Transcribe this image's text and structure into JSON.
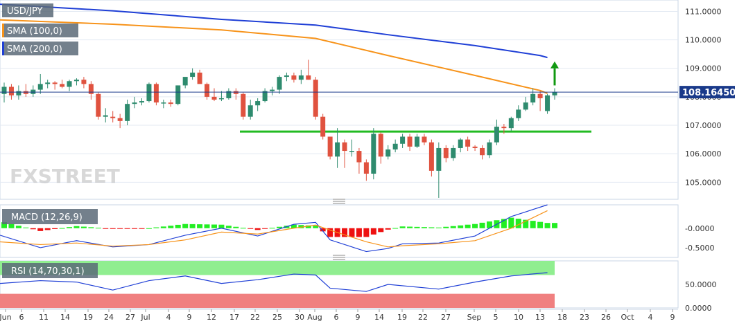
{
  "chart_data": [
    {
      "type": "candlestick",
      "symbol": "USD/JPY",
      "overlays": [
        {
          "name": "SMA (100,0)",
          "color": "#f7931a",
          "points": [
            [
              "Jun 3",
              110.7
            ],
            [
              "Jun 24",
              110.55
            ],
            [
              "Jul 15",
              110.35
            ],
            [
              "Aug 1",
              110.05
            ],
            [
              "Aug 15",
              109.45
            ],
            [
              "Sep 1",
              108.75
            ],
            [
              "Sep 13",
              108.22
            ],
            [
              "Sep 16",
              108.12
            ]
          ]
        },
        {
          "name": "SMA (200,0)",
          "color": "#1f3fd6",
          "points": [
            [
              "Jun 3",
              111.25
            ],
            [
              "Jun 24",
              111.02
            ],
            [
              "Jul 15",
              110.72
            ],
            [
              "Aug 1",
              110.52
            ],
            [
              "Aug 15",
              110.18
            ],
            [
              "Sep 1",
              109.8
            ],
            [
              "Sep 13",
              109.45
            ],
            [
              "Sep 16",
              109.38
            ]
          ]
        }
      ],
      "last_price": "108.16450",
      "last_price_value": 108.1645,
      "support_level": 106.78,
      "ylim": [
        104.4,
        111.4
      ],
      "yticks": [
        "105.0000",
        "106.0000",
        "107.0000",
        "108.0000",
        "109.0000",
        "110.0000",
        "111.0000"
      ],
      "colors": {
        "up": "#2e8b6e",
        "down": "#e0523f",
        "support": "#22bb22",
        "arrow": "#119911",
        "price_line": "#1a3a8a"
      },
      "candles": [
        {
          "d": "Jun 3",
          "o": 108.1,
          "h": 108.5,
          "l": 107.8,
          "c": 108.35
        },
        {
          "d": "Jun 4",
          "o": 108.35,
          "h": 108.45,
          "l": 107.9,
          "c": 108.05
        },
        {
          "d": "Jun 5",
          "o": 108.05,
          "h": 108.4,
          "l": 107.9,
          "c": 108.2
        },
        {
          "d": "Jun 6",
          "o": 108.2,
          "h": 108.45,
          "l": 108.0,
          "c": 108.1
        },
        {
          "d": "Jun 7",
          "o": 108.1,
          "h": 108.4,
          "l": 108.0,
          "c": 108.25
        },
        {
          "d": "Jun 10",
          "o": 108.25,
          "h": 108.8,
          "l": 108.1,
          "c": 108.45
        },
        {
          "d": "Jun 11",
          "o": 108.45,
          "h": 108.6,
          "l": 108.3,
          "c": 108.5
        },
        {
          "d": "Jun 12",
          "o": 108.5,
          "h": 108.55,
          "l": 108.25,
          "c": 108.45
        },
        {
          "d": "Jun 13",
          "o": 108.45,
          "h": 108.6,
          "l": 108.3,
          "c": 108.35
        },
        {
          "d": "Jun 14",
          "o": 108.35,
          "h": 108.6,
          "l": 108.2,
          "c": 108.55
        },
        {
          "d": "Jun 17",
          "o": 108.55,
          "h": 108.65,
          "l": 108.4,
          "c": 108.6
        },
        {
          "d": "Jun 18",
          "o": 108.6,
          "h": 108.7,
          "l": 108.3,
          "c": 108.45
        },
        {
          "d": "Jun 19",
          "o": 108.45,
          "h": 108.55,
          "l": 107.9,
          "c": 108.1
        },
        {
          "d": "Jun 20",
          "o": 108.1,
          "h": 108.15,
          "l": 107.2,
          "c": 107.3
        },
        {
          "d": "Jun 21",
          "o": 107.3,
          "h": 107.6,
          "l": 107.1,
          "c": 107.35
        },
        {
          "d": "Jun 24",
          "o": 107.3,
          "h": 107.5,
          "l": 107.1,
          "c": 107.25
        },
        {
          "d": "Jun 25",
          "o": 107.25,
          "h": 107.4,
          "l": 106.9,
          "c": 107.15
        },
        {
          "d": "Jun 26",
          "o": 107.15,
          "h": 107.9,
          "l": 107.0,
          "c": 107.75
        },
        {
          "d": "Jun 27",
          "o": 107.75,
          "h": 108.0,
          "l": 107.6,
          "c": 107.8
        },
        {
          "d": "Jun 28",
          "o": 107.8,
          "h": 107.95,
          "l": 107.7,
          "c": 107.85
        },
        {
          "d": "Jul 1",
          "o": 107.85,
          "h": 108.5,
          "l": 107.8,
          "c": 108.45
        },
        {
          "d": "Jul 2",
          "o": 108.45,
          "h": 108.5,
          "l": 107.7,
          "c": 107.8
        },
        {
          "d": "Jul 3",
          "o": 107.8,
          "h": 107.9,
          "l": 107.6,
          "c": 107.8
        },
        {
          "d": "Jul 4",
          "o": 107.8,
          "h": 107.9,
          "l": 107.65,
          "c": 107.75
        },
        {
          "d": "Jul 5",
          "o": 107.75,
          "h": 108.4,
          "l": 107.7,
          "c": 108.4
        },
        {
          "d": "Jul 8",
          "o": 108.4,
          "h": 108.65,
          "l": 108.3,
          "c": 108.7
        },
        {
          "d": "Jul 9",
          "o": 108.7,
          "h": 109.0,
          "l": 108.6,
          "c": 108.85
        },
        {
          "d": "Jul 10",
          "o": 108.85,
          "h": 108.95,
          "l": 108.5,
          "c": 108.45
        },
        {
          "d": "Jul 11",
          "o": 108.45,
          "h": 108.5,
          "l": 107.9,
          "c": 108.0
        },
        {
          "d": "Jul 12",
          "o": 108.0,
          "h": 108.3,
          "l": 107.85,
          "c": 107.9
        },
        {
          "d": "Jul 15",
          "o": 107.95,
          "h": 108.2,
          "l": 107.85,
          "c": 107.95
        },
        {
          "d": "Jul 16",
          "o": 107.95,
          "h": 108.3,
          "l": 107.9,
          "c": 108.2
        },
        {
          "d": "Jul 17",
          "o": 108.2,
          "h": 108.3,
          "l": 107.9,
          "c": 108.1
        },
        {
          "d": "Jul 18",
          "o": 108.1,
          "h": 108.15,
          "l": 107.2,
          "c": 107.3
        },
        {
          "d": "Jul 19",
          "o": 107.3,
          "h": 107.9,
          "l": 107.2,
          "c": 107.7
        },
        {
          "d": "Jul 22",
          "o": 107.7,
          "h": 107.95,
          "l": 107.5,
          "c": 107.85
        },
        {
          "d": "Jul 23",
          "o": 107.85,
          "h": 108.3,
          "l": 107.8,
          "c": 108.2
        },
        {
          "d": "Jul 24",
          "o": 108.2,
          "h": 108.35,
          "l": 108.05,
          "c": 108.25
        },
        {
          "d": "Jul 25",
          "o": 108.25,
          "h": 108.75,
          "l": 108.1,
          "c": 108.7
        },
        {
          "d": "Jul 26",
          "o": 108.7,
          "h": 108.85,
          "l": 108.55,
          "c": 108.75
        },
        {
          "d": "Jul 29",
          "o": 108.75,
          "h": 108.85,
          "l": 108.5,
          "c": 108.6
        },
        {
          "d": "Jul 30",
          "o": 108.6,
          "h": 108.95,
          "l": 108.45,
          "c": 108.75
        },
        {
          "d": "Jul 31",
          "o": 108.75,
          "h": 109.3,
          "l": 108.6,
          "c": 108.6
        },
        {
          "d": "Aug 1",
          "o": 108.6,
          "h": 108.7,
          "l": 107.2,
          "c": 107.3
        },
        {
          "d": "Aug 2",
          "o": 107.3,
          "h": 107.4,
          "l": 106.5,
          "c": 106.6
        },
        {
          "d": "Aug 5",
          "o": 106.6,
          "h": 106.6,
          "l": 105.8,
          "c": 105.9
        },
        {
          "d": "Aug 6",
          "o": 105.9,
          "h": 106.9,
          "l": 105.5,
          "c": 106.4
        },
        {
          "d": "Aug 7",
          "o": 106.4,
          "h": 106.5,
          "l": 105.5,
          "c": 106.1
        },
        {
          "d": "Aug 8",
          "o": 106.1,
          "h": 106.5,
          "l": 105.9,
          "c": 106.1
        },
        {
          "d": "Aug 9",
          "o": 106.1,
          "h": 106.2,
          "l": 105.3,
          "c": 105.7
        },
        {
          "d": "Aug 12",
          "o": 105.7,
          "h": 105.8,
          "l": 105.05,
          "c": 105.3
        },
        {
          "d": "Aug 13",
          "o": 105.3,
          "h": 106.9,
          "l": 105.1,
          "c": 106.7
        },
        {
          "d": "Aug 14",
          "o": 106.7,
          "h": 106.75,
          "l": 105.65,
          "c": 105.9
        },
        {
          "d": "Aug 15",
          "o": 105.9,
          "h": 106.3,
          "l": 105.8,
          "c": 106.15
        },
        {
          "d": "Aug 16",
          "o": 106.15,
          "h": 106.5,
          "l": 106.05,
          "c": 106.35
        },
        {
          "d": "Aug 19",
          "o": 106.35,
          "h": 106.7,
          "l": 106.2,
          "c": 106.6
        },
        {
          "d": "Aug 20",
          "o": 106.6,
          "h": 106.7,
          "l": 106.1,
          "c": 106.25
        },
        {
          "d": "Aug 21",
          "o": 106.25,
          "h": 106.7,
          "l": 106.2,
          "c": 106.6
        },
        {
          "d": "Aug 22",
          "o": 106.6,
          "h": 106.7,
          "l": 106.3,
          "c": 106.4
        },
        {
          "d": "Aug 23",
          "o": 106.4,
          "h": 106.5,
          "l": 105.2,
          "c": 105.4
        },
        {
          "d": "Aug 26",
          "o": 105.4,
          "h": 106.4,
          "l": 104.45,
          "c": 106.2
        },
        {
          "d": "Aug 27",
          "o": 106.2,
          "h": 106.3,
          "l": 105.7,
          "c": 105.85
        },
        {
          "d": "Aug 28",
          "o": 105.85,
          "h": 106.3,
          "l": 105.75,
          "c": 106.2
        },
        {
          "d": "Aug 29",
          "o": 106.2,
          "h": 106.55,
          "l": 106.05,
          "c": 106.5
        },
        {
          "d": "Aug 30",
          "o": 106.5,
          "h": 106.6,
          "l": 106.1,
          "c": 106.25
        },
        {
          "d": "Sep 2",
          "o": 106.25,
          "h": 106.3,
          "l": 106.1,
          "c": 106.2
        },
        {
          "d": "Sep 3",
          "o": 106.2,
          "h": 106.3,
          "l": 105.8,
          "c": 105.95
        },
        {
          "d": "Sep 4",
          "o": 105.95,
          "h": 106.5,
          "l": 105.85,
          "c": 106.4
        },
        {
          "d": "Sep 5",
          "o": 106.4,
          "h": 107.2,
          "l": 106.3,
          "c": 106.95
        },
        {
          "d": "Sep 6",
          "o": 106.95,
          "h": 107.05,
          "l": 106.7,
          "c": 106.9
        },
        {
          "d": "Sep 9",
          "o": 106.9,
          "h": 107.3,
          "l": 106.8,
          "c": 107.25
        },
        {
          "d": "Sep 10",
          "o": 107.25,
          "h": 107.7,
          "l": 107.15,
          "c": 107.55
        },
        {
          "d": "Sep 11",
          "o": 107.55,
          "h": 108.0,
          "l": 107.5,
          "c": 107.8
        },
        {
          "d": "Sep 12",
          "o": 107.8,
          "h": 108.3,
          "l": 107.7,
          "c": 108.1
        },
        {
          "d": "Sep 13",
          "o": 108.1,
          "h": 108.2,
          "l": 107.5,
          "c": 107.95
        },
        {
          "d": "Sep 16",
          "o": 107.5,
          "h": 108.1,
          "l": 107.4,
          "c": 108.05
        },
        {
          "d": "Sep 17",
          "o": 108.05,
          "h": 108.3,
          "l": 107.9,
          "c": 108.16
        }
      ]
    },
    {
      "type": "line",
      "title": "MACD (12,26,9)",
      "yticks": [
        "-0.0000",
        "-0.5000"
      ],
      "ylim": [
        -0.75,
        0.6
      ],
      "x": [
        "Jun 3",
        "Jun 10",
        "Jun 17",
        "Jun 24",
        "Jul 1",
        "Jul 8",
        "Jul 15",
        "Jul 22",
        "Jul 29",
        "Aug 1",
        "Aug 5",
        "Aug 12",
        "Aug 15",
        "Aug 19",
        "Aug 26",
        "Sep 2",
        "Sep 9",
        "Sep 16"
      ],
      "series": [
        {
          "name": "MACD",
          "color": "#1f3fd6",
          "values": [
            -0.18,
            -0.5,
            -0.32,
            -0.48,
            -0.42,
            -0.18,
            0.0,
            -0.2,
            0.1,
            0.15,
            -0.3,
            -0.6,
            -0.52,
            -0.4,
            -0.38,
            -0.2,
            0.3,
            0.6
          ]
        },
        {
          "name": "Signal",
          "color": "#f7931a",
          "values": [
            -0.35,
            -0.42,
            -0.38,
            -0.46,
            -0.42,
            -0.3,
            -0.1,
            -0.15,
            0.0,
            0.08,
            -0.05,
            -0.35,
            -0.48,
            -0.45,
            -0.4,
            -0.32,
            0.0,
            0.45
          ]
        }
      ],
      "histogram_colors": {
        "positive": "#22ee22",
        "negative": "#ee1111"
      }
    },
    {
      "type": "line",
      "title": "RSI (14,70,30,1)",
      "yticks": [
        "50.0000",
        "0.0000"
      ],
      "ylim": [
        0,
        100
      ],
      "zones": {
        "overbought": 70,
        "oversold": 30,
        "overbought_color": "#90ee90",
        "oversold_color": "#f08080"
      },
      "x": [
        "Jun 3",
        "Jun 10",
        "Jun 17",
        "Jun 24",
        "Jul 1",
        "Jul 8",
        "Jul 15",
        "Jul 22",
        "Jul 29",
        "Aug 1",
        "Aug 5",
        "Aug 12",
        "Aug 15",
        "Aug 26",
        "Sep 2",
        "Sep 9",
        "Sep 16"
      ],
      "series": [
        {
          "name": "RSI",
          "color": "#1f3fd6",
          "values": [
            52,
            58,
            55,
            38,
            58,
            68,
            52,
            60,
            72,
            70,
            42,
            35,
            50,
            40,
            55,
            68,
            75
          ]
        }
      ]
    }
  ],
  "x_axis_labels": [
    "Jun",
    "6",
    "11",
    "14",
    "19",
    "24",
    "27",
    "Jul",
    "4",
    "9",
    "12",
    "17",
    "22",
    "25",
    "30",
    "Aug",
    "6",
    "9",
    "14",
    "19",
    "22",
    "27",
    "Sep",
    "5",
    "10",
    "13",
    "18",
    "23",
    "26",
    "Oct",
    "4",
    "9"
  ],
  "watermark": "FXSTREET"
}
